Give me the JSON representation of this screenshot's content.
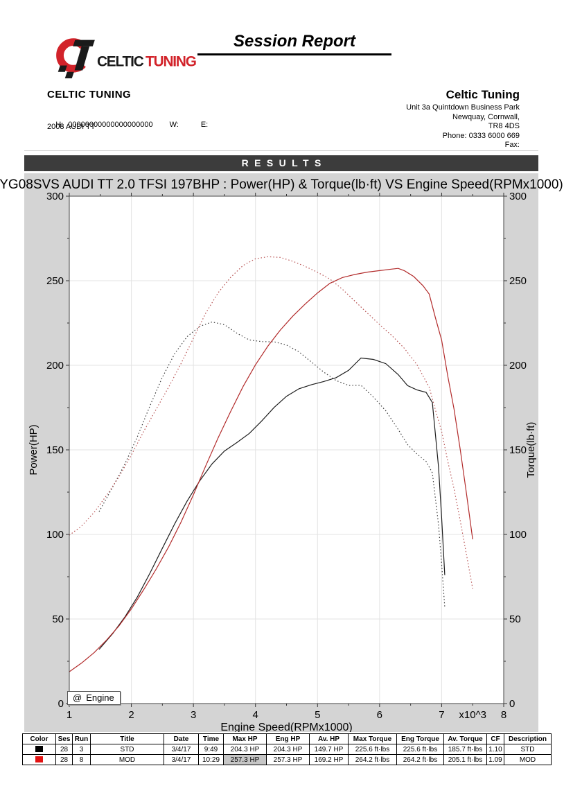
{
  "header": {
    "report_title": "Session Report",
    "logo": {
      "text_black": "CELTIC",
      "text_red": "TUNING",
      "red": "#d2232a",
      "black": "#1a1a1a"
    },
    "company_left": {
      "name": "CELTIC TUNING",
      "h_label": "H:",
      "h_value": "00000000000000000000",
      "w_label": "W:",
      "e_label": "E:",
      "vehicle": "2008 AUDI TT"
    },
    "company_right": {
      "name": "Celtic Tuning",
      "address_lines": [
        "Unit 3a Quintdown Business Park",
        "Newquay, Cornwall,",
        "TR8 4DS",
        "Phone: 0333 6000 669",
        "Fax:"
      ]
    }
  },
  "results_banner": {
    "label": "RESULTS",
    "bg": "#3c3c3c",
    "fg": "#ffffff"
  },
  "chart_data": {
    "type": "line",
    "title": "YG08SVS AUDI TT 2.0 TFSI 197BHP : Power(HP) & Torque(lb·ft) VS Engine Speed(RPMx1000)",
    "xlabel": "Engine Speed(RPMx1000)",
    "ylabel_left": "Power(HP)",
    "ylabel_right": "Torque(lb·ft)",
    "x_scale_label": "x10^3",
    "xlim": [
      1,
      8
    ],
    "ylim": [
      0,
      300
    ],
    "x_ticks": [
      1,
      2,
      3,
      4,
      5,
      6,
      7,
      8
    ],
    "y_ticks": [
      0,
      50,
      100,
      150,
      200,
      250,
      300
    ],
    "x_minor_ticks": [
      1.5,
      2.5,
      3.5,
      4.5,
      5.5,
      6.5,
      7.5
    ],
    "y_minor_ticks": [
      25,
      75,
      125,
      175,
      225,
      275
    ],
    "grid": true,
    "legend_position": "bottom-left",
    "background": "#d4d4d4",
    "plot_background": "#ffffff",
    "grid_color": "#e3e3e3",
    "axis_color": "#444444",
    "legend": {
      "icon": "@",
      "label": "Engine"
    },
    "series": [
      {
        "name": "STD Power (HP)",
        "color": "#1c1c1c",
        "style": "solid",
        "points": [
          [
            1.48,
            32
          ],
          [
            1.7,
            41.4
          ],
          [
            1.9,
            51.4
          ],
          [
            2.1,
            63.2
          ],
          [
            2.3,
            77.1
          ],
          [
            2.5,
            91.9
          ],
          [
            2.7,
            106.4
          ],
          [
            2.9,
            119.8
          ],
          [
            3.1,
            131.6
          ],
          [
            3.3,
            141.7
          ],
          [
            3.5,
            149.3
          ],
          [
            3.7,
            154.3
          ],
          [
            3.9,
            159.7
          ],
          [
            4.1,
            167.1
          ],
          [
            4.3,
            175.1
          ],
          [
            4.5,
            181.7
          ],
          [
            4.7,
            186.1
          ],
          [
            4.9,
            188.5
          ],
          [
            5.1,
            190.4
          ],
          [
            5.3,
            192.7
          ],
          [
            5.5,
            197
          ],
          [
            5.7,
            204.3
          ],
          [
            5.9,
            203.5
          ],
          [
            6.1,
            201
          ],
          [
            6.3,
            194.5
          ],
          [
            6.45,
            188
          ],
          [
            6.6,
            185.5
          ],
          [
            6.75,
            184
          ],
          [
            6.85,
            178
          ],
          [
            6.95,
            140
          ],
          [
            7.0,
            110
          ],
          [
            7.05,
            76
          ]
        ]
      },
      {
        "name": "STD Torque (lb·ft)",
        "color": "#3a3a3a",
        "style": "dotted",
        "points": [
          [
            1.48,
            113.5
          ],
          [
            1.7,
            128
          ],
          [
            1.9,
            142
          ],
          [
            2.1,
            158
          ],
          [
            2.3,
            176
          ],
          [
            2.5,
            193
          ],
          [
            2.7,
            207
          ],
          [
            2.9,
            217
          ],
          [
            3.1,
            223
          ],
          [
            3.3,
            225.6
          ],
          [
            3.5,
            224
          ],
          [
            3.7,
            219
          ],
          [
            3.9,
            215
          ],
          [
            4.1,
            214
          ],
          [
            4.3,
            213.9
          ],
          [
            4.5,
            212
          ],
          [
            4.7,
            208
          ],
          [
            4.9,
            202
          ],
          [
            5.1,
            196
          ],
          [
            5.3,
            191
          ],
          [
            5.5,
            188.1
          ],
          [
            5.7,
            188.2
          ],
          [
            5.9,
            181.1
          ],
          [
            6.1,
            173.1
          ],
          [
            6.3,
            162.1
          ],
          [
            6.45,
            153.1
          ],
          [
            6.6,
            147.6
          ],
          [
            6.75,
            143.2
          ],
          [
            6.85,
            136.4
          ],
          [
            6.95,
            105.8
          ],
          [
            7.0,
            82.5
          ],
          [
            7.05,
            57
          ]
        ]
      },
      {
        "name": "MOD Power (HP)",
        "color": "#b22a2a",
        "style": "solid",
        "points": [
          [
            1.0,
            18.8
          ],
          [
            1.2,
            24
          ],
          [
            1.4,
            30.1
          ],
          [
            1.6,
            37.5
          ],
          [
            1.8,
            45.9
          ],
          [
            2.0,
            56
          ],
          [
            2.2,
            67.4
          ],
          [
            2.4,
            79.5
          ],
          [
            2.6,
            92.6
          ],
          [
            2.8,
            107.2
          ],
          [
            3.0,
            123.4
          ],
          [
            3.2,
            140.7
          ],
          [
            3.4,
            157.3
          ],
          [
            3.6,
            172.7
          ],
          [
            3.8,
            187.4
          ],
          [
            4.0,
            200.3
          ],
          [
            4.2,
            211.3
          ],
          [
            4.4,
            220.8
          ],
          [
            4.6,
            229
          ],
          [
            4.8,
            236.2
          ],
          [
            5.0,
            242.8
          ],
          [
            5.2,
            248.5
          ],
          [
            5.4,
            251.9
          ],
          [
            5.6,
            253.7
          ],
          [
            5.8,
            255.1
          ],
          [
            6.0,
            256
          ],
          [
            6.2,
            256.9
          ],
          [
            6.3,
            257.3
          ],
          [
            6.4,
            255.9
          ],
          [
            6.55,
            252.5
          ],
          [
            6.7,
            247
          ],
          [
            6.8,
            242.1
          ],
          [
            6.9,
            228
          ],
          [
            7.0,
            214.9
          ],
          [
            7.1,
            193.3
          ],
          [
            7.2,
            174.1
          ],
          [
            7.3,
            150.1
          ],
          [
            7.4,
            124
          ],
          [
            7.5,
            97.1
          ]
        ]
      },
      {
        "name": "MOD Torque (lb·ft)",
        "color": "#b75252",
        "style": "dotted",
        "points": [
          [
            1.0,
            99.5
          ],
          [
            1.2,
            105
          ],
          [
            1.4,
            113
          ],
          [
            1.6,
            123
          ],
          [
            1.8,
            134
          ],
          [
            2.0,
            147
          ],
          [
            2.2,
            161
          ],
          [
            2.4,
            174
          ],
          [
            2.6,
            187
          ],
          [
            2.8,
            201
          ],
          [
            3.0,
            216
          ],
          [
            3.2,
            231
          ],
          [
            3.4,
            243
          ],
          [
            3.6,
            252
          ],
          [
            3.8,
            259
          ],
          [
            4.0,
            263
          ],
          [
            4.2,
            264.2
          ],
          [
            4.4,
            263.8
          ],
          [
            4.6,
            261.5
          ],
          [
            4.8,
            258.5
          ],
          [
            5.0,
            255
          ],
          [
            5.2,
            251
          ],
          [
            5.4,
            245
          ],
          [
            5.6,
            238
          ],
          [
            5.8,
            231
          ],
          [
            6.0,
            224
          ],
          [
            6.2,
            217.5
          ],
          [
            6.4,
            210
          ],
          [
            6.6,
            200.5
          ],
          [
            6.8,
            187
          ],
          [
            6.9,
            173.5
          ],
          [
            7.0,
            161
          ],
          [
            7.1,
            143
          ],
          [
            7.2,
            127
          ],
          [
            7.3,
            108
          ],
          [
            7.4,
            88
          ],
          [
            7.5,
            68
          ]
        ]
      }
    ]
  },
  "footer_table": {
    "columns": [
      "Color",
      "Ses",
      "Run",
      "Title",
      "Date",
      "Time",
      "Max HP",
      "Eng HP",
      "Av. HP",
      "Max Torque",
      "Eng Torque",
      "Av. Torque",
      "CF",
      "Description"
    ],
    "rows": [
      {
        "color": "#000000",
        "cells": [
          "28",
          "3",
          "STD",
          "3/4/17",
          "9:49",
          "204.3 HP",
          "204.3 HP",
          "149.7 HP",
          "225.6 ft·lbs",
          "225.6 ft·lbs",
          "185.7 ft·lbs",
          "1.10",
          "STD"
        ],
        "highlight_max_hp": false
      },
      {
        "color": "#e31212",
        "cells": [
          "28",
          "8",
          "MOD",
          "3/4/17",
          "10:29",
          "257.3 HP",
          "257.3 HP",
          "169.2 HP",
          "264.2 ft·lbs",
          "264.2 ft·lbs",
          "205.1 ft·lbs",
          "1.09",
          "MOD"
        ],
        "highlight_max_hp": true
      }
    ],
    "highlight_color": "#c6c6c6"
  }
}
